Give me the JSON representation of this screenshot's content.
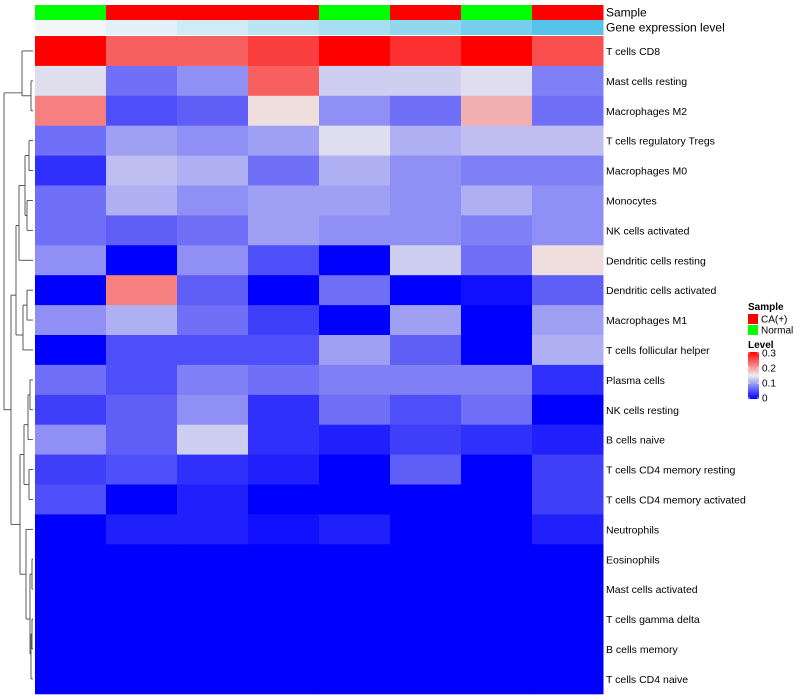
{
  "chart_data": {
    "type": "heatmap",
    "annotation_rows": [
      {
        "label": "Sample"
      },
      {
        "label": "Gene expression level"
      }
    ],
    "columns": [
      {
        "sample": "Normal",
        "expression": 0.0
      },
      {
        "sample": "CA(+)",
        "expression": 0.1
      },
      {
        "sample": "CA(+)",
        "expression": 0.22
      },
      {
        "sample": "CA(+)",
        "expression": 0.35
      },
      {
        "sample": "Normal",
        "expression": 0.48
      },
      {
        "sample": "CA(+)",
        "expression": 0.62
      },
      {
        "sample": "Normal",
        "expression": 0.8
      },
      {
        "sample": "CA(+)",
        "expression": 1.0
      }
    ],
    "rows": [
      "T cells CD8",
      "Mast cells resting",
      "Macrophages M2",
      "T cells regulatory  Tregs",
      "Macrophages M0",
      "Monocytes",
      "NK cells activated",
      "Dendritic cells resting",
      "Dendritic cells activated",
      "Macrophages M1",
      "T cells follicular helper",
      "Plasma cells",
      "NK cells resting",
      "B cells naive",
      "T cells CD4 memory resting",
      "T cells CD4 memory activated",
      "Neutrophils",
      "Eosinophils",
      "Mast cells activated",
      "T cells gamma delta",
      "B cells memory",
      "T cells CD4 naive"
    ],
    "values": [
      [
        0.3,
        0.24,
        0.24,
        0.26,
        0.3,
        0.27,
        0.3,
        0.25
      ],
      [
        0.14,
        0.07,
        0.09,
        0.24,
        0.13,
        0.13,
        0.14,
        0.08
      ],
      [
        0.22,
        0.05,
        0.06,
        0.16,
        0.09,
        0.07,
        0.19,
        0.07
      ],
      [
        0.07,
        0.1,
        0.09,
        0.1,
        0.14,
        0.11,
        0.12,
        0.12
      ],
      [
        0.03,
        0.12,
        0.11,
        0.07,
        0.11,
        0.09,
        0.08,
        0.08
      ],
      [
        0.07,
        0.11,
        0.09,
        0.1,
        0.1,
        0.09,
        0.11,
        0.09
      ],
      [
        0.07,
        0.06,
        0.07,
        0.1,
        0.09,
        0.09,
        0.08,
        0.09
      ],
      [
        0.09,
        0.0,
        0.09,
        0.05,
        0.0,
        0.13,
        0.07,
        0.16
      ],
      [
        0.0,
        0.22,
        0.06,
        0.0,
        0.07,
        0.0,
        0.01,
        0.06
      ],
      [
        0.09,
        0.11,
        0.07,
        0.04,
        0.0,
        0.1,
        0.0,
        0.1
      ],
      [
        0.0,
        0.05,
        0.05,
        0.05,
        0.1,
        0.06,
        0.0,
        0.11
      ],
      [
        0.07,
        0.05,
        0.08,
        0.07,
        0.08,
        0.08,
        0.08,
        0.03
      ],
      [
        0.04,
        0.06,
        0.09,
        0.03,
        0.07,
        0.05,
        0.07,
        0.0
      ],
      [
        0.09,
        0.06,
        0.13,
        0.03,
        0.02,
        0.04,
        0.03,
        0.02
      ],
      [
        0.04,
        0.05,
        0.03,
        0.02,
        0.0,
        0.06,
        0.0,
        0.04
      ],
      [
        0.05,
        0.0,
        0.02,
        0.0,
        0.0,
        0.0,
        0.0,
        0.04
      ],
      [
        0.0,
        0.02,
        0.02,
        0.01,
        0.02,
        0.0,
        0.0,
        0.02
      ],
      [
        0.0,
        0.0,
        0.0,
        0.0,
        0.0,
        0.0,
        0.0,
        0.0
      ],
      [
        0.0,
        0.0,
        0.0,
        0.0,
        0.0,
        0.0,
        0.0,
        0.0
      ],
      [
        0.0,
        0.0,
        0.0,
        0.0,
        0.0,
        0.0,
        0.0,
        0.0
      ],
      [
        0.0,
        0.0,
        0.0,
        0.0,
        0.0,
        0.0,
        0.0,
        0.0
      ],
      [
        0.0,
        0.0,
        0.0,
        0.0,
        0.0,
        0.0,
        0.0,
        0.0
      ]
    ],
    "color_scale": {
      "min": 0,
      "max": 0.3,
      "low": "#0000ff",
      "mid": "#eeeeee",
      "high": "#ff0000"
    },
    "expression_colors": {
      "low": "#f2f6f9",
      "high": "#56c4ea"
    },
    "legend": {
      "sample_title": "Sample",
      "sample_items": [
        {
          "label": "CA(+)",
          "color": "#ff0000"
        },
        {
          "label": "Normal",
          "color": "#00ff00"
        }
      ],
      "level_title": "Level",
      "level_ticks": [
        {
          "value": 0.3,
          "label": "0.3"
        },
        {
          "value": 0.2,
          "label": "0.2"
        },
        {
          "value": 0.1,
          "label": "0.1"
        },
        {
          "value": 0,
          "label": "0"
        }
      ],
      "placement": "right"
    }
  }
}
